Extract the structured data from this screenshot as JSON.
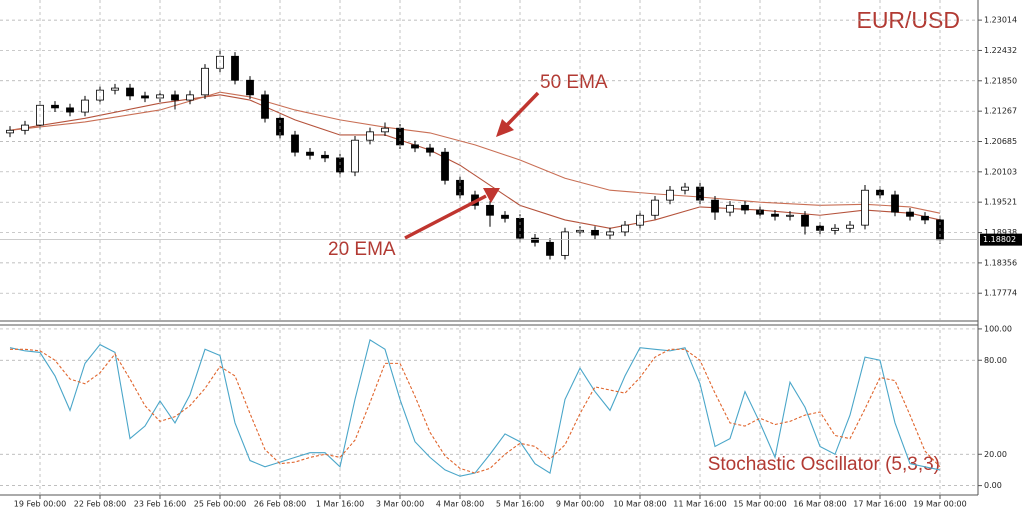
{
  "chart_data": [
    {
      "type": "candlestick",
      "title": "EUR/USD",
      "open": [
        1.2085,
        1.209,
        1.21,
        1.2138,
        1.2133,
        1.2125,
        1.2148,
        1.2167,
        1.2171,
        1.2156,
        1.2152,
        1.2158,
        1.2148,
        1.2158,
        1.2209,
        1.2232,
        1.2186,
        1.2158,
        1.2113,
        1.2081,
        1.2048,
        1.2042,
        1.2037,
        1.201,
        1.2071,
        1.2087,
        1.2094,
        1.2062,
        1.2056,
        1.2048,
        1.1994,
        1.1966,
        1.1946,
        1.1927,
        1.1921,
        1.1883,
        1.1875,
        1.185,
        1.1895,
        1.1898,
        1.1889,
        1.1895,
        1.1908,
        1.1927,
        1.1956,
        1.1975,
        1.1981,
        1.1956,
        1.1933,
        1.1946,
        1.1937,
        1.1929,
        1.1925,
        1.1927,
        1.1906,
        1.1898,
        1.1902,
        1.1908,
        1.1975,
        1.1966,
        1.1933,
        1.1925,
        1.1918
      ],
      "high": [
        1.2098,
        1.2108,
        1.2146,
        1.2146,
        1.2141,
        1.2156,
        1.2175,
        1.2179,
        1.2179,
        1.2164,
        1.2166,
        1.2166,
        1.2166,
        1.2217,
        1.2245,
        1.224,
        1.2194,
        1.2166,
        1.2121,
        1.2089,
        1.2056,
        1.205,
        1.2045,
        1.2079,
        1.2095,
        1.2105,
        1.2102,
        1.207,
        1.2064,
        1.2056,
        1.2002,
        1.1974,
        1.1954,
        1.1935,
        1.1929,
        1.1891,
        1.1883,
        1.1903,
        1.1906,
        1.1906,
        1.1903,
        1.1916,
        1.1935,
        1.1964,
        1.1983,
        1.1989,
        1.1989,
        1.1964,
        1.1954,
        1.1954,
        1.1945,
        1.1937,
        1.1935,
        1.1935,
        1.1914,
        1.191,
        1.1916,
        1.1985,
        1.1983,
        1.1974,
        1.1941,
        1.1933,
        1.1926
      ],
      "low": [
        1.2077,
        1.2082,
        1.2092,
        1.2125,
        1.2117,
        1.2117,
        1.214,
        1.2159,
        1.2148,
        1.2144,
        1.2144,
        1.213,
        1.214,
        1.215,
        1.2201,
        1.2178,
        1.215,
        1.2105,
        1.2073,
        1.204,
        1.2034,
        1.2029,
        1.2,
        1.2002,
        1.2063,
        1.2079,
        1.2054,
        1.2048,
        1.204,
        1.1986,
        1.1958,
        1.1938,
        1.1905,
        1.1913,
        1.1875,
        1.1867,
        1.1842,
        1.1842,
        1.1887,
        1.1881,
        1.1881,
        1.1887,
        1.19,
        1.1919,
        1.1948,
        1.1967,
        1.1948,
        1.1918,
        1.1925,
        1.1929,
        1.1921,
        1.1917,
        1.1917,
        1.189,
        1.189,
        1.189,
        1.1894,
        1.19,
        1.1958,
        1.1925,
        1.1917,
        1.191,
        1.1872
      ],
      "close": [
        1.209,
        1.21,
        1.2138,
        1.2133,
        1.2125,
        1.2148,
        1.2167,
        1.2171,
        1.2156,
        1.2152,
        1.2158,
        1.2148,
        1.2158,
        1.2209,
        1.2232,
        1.2186,
        1.2158,
        1.2113,
        1.2081,
        1.2048,
        1.2042,
        1.2037,
        1.201,
        1.2071,
        1.2087,
        1.2094,
        1.2062,
        1.2056,
        1.2048,
        1.1994,
        1.1966,
        1.1946,
        1.1927,
        1.1921,
        1.1883,
        1.1875,
        1.185,
        1.1895,
        1.1898,
        1.1889,
        1.1895,
        1.1908,
        1.1927,
        1.1956,
        1.1975,
        1.1981,
        1.1956,
        1.1933,
        1.1946,
        1.1937,
        1.1929,
        1.1925,
        1.1927,
        1.1906,
        1.1898,
        1.1902,
        1.1908,
        1.1975,
        1.1966,
        1.1933,
        1.1925,
        1.1918,
        1.188
      ],
      "series": [
        {
          "name": "20 EMA",
          "color": "#b5533c",
          "x": [
            0,
            5,
            10,
            14,
            16,
            19,
            22,
            25,
            28,
            30,
            34,
            37,
            40,
            43,
            46,
            50,
            54,
            57,
            60,
            62
          ],
          "values": [
            1.209,
            1.2113,
            1.2142,
            1.2158,
            1.2148,
            1.211,
            1.2081,
            1.2081,
            1.2052,
            1.2023,
            1.1946,
            1.1918,
            1.1902,
            1.1918,
            1.1943,
            1.1937,
            1.1927,
            1.1937,
            1.1931,
            1.1918
          ]
        },
        {
          "name": "50 EMA",
          "color": "#c96f55",
          "x": [
            0,
            5,
            10,
            14,
            16,
            19,
            22,
            25,
            28,
            31,
            34,
            37,
            40,
            43,
            46,
            50,
            54,
            57,
            60,
            62
          ],
          "values": [
            1.209,
            1.2106,
            1.2129,
            1.2163,
            1.2154,
            1.2129,
            1.211,
            1.2096,
            1.2085,
            1.2062,
            1.2033,
            1.1998,
            1.1975,
            1.1968,
            1.1962,
            1.1952,
            1.1946,
            1.1948,
            1.1943,
            1.1931
          ]
        }
      ],
      "last_price": 1.18802,
      "ylim": [
        1.1726,
        1.234
      ],
      "yticks": [
        1.23014,
        1.22432,
        {
          "value": 1.2185,
          "label": "1.21850"
        },
        1.21267,
        1.20685,
        1.20103,
        1.19521,
        1.18938,
        1.18356,
        1.17774
      ],
      "grid": true
    },
    {
      "type": "line",
      "title": "Stochastic Oscillator (5,3,3)",
      "categories": [
        null,
        null,
        "19 Feb 00:00",
        null,
        null,
        null,
        "22 Feb 08:00",
        null,
        null,
        null,
        "23 Feb 16:00",
        null,
        null,
        null,
        "25 Feb 00:00",
        null,
        null,
        null,
        "26 Feb 08:00",
        null,
        null,
        null,
        "1 Mar 16:00",
        null,
        null,
        null,
        "3 Mar 00:00",
        null,
        null,
        null,
        "4 Mar 08:00",
        null,
        null,
        null,
        "5 Mar 16:00",
        null,
        null,
        null,
        "9 Mar 00:00",
        null,
        null,
        null,
        "10 Mar 08:00",
        null,
        null,
        null,
        "11 Mar 16:00",
        null,
        null,
        null,
        "15 Mar 00:00",
        null,
        null,
        null,
        "16 Mar 08:00",
        null,
        null,
        null,
        "17 Mar 16:00",
        null,
        null,
        null,
        "19 Mar 00:00"
      ],
      "series": [
        {
          "color": "#4aa6c9",
          "line_style": "solid",
          "values": [
            88,
            86,
            85,
            70,
            48,
            78,
            90,
            85,
            30,
            38,
            54,
            40,
            58,
            87,
            83,
            40,
            16,
            12,
            15,
            18,
            21,
            21,
            12,
            55,
            93,
            87,
            55,
            28,
            18,
            10,
            6,
            8,
            20,
            33,
            28,
            14,
            8,
            55,
            75,
            60,
            48,
            70,
            88,
            87,
            86,
            88,
            65,
            25,
            30,
            60,
            40,
            18,
            66,
            50,
            25,
            20,
            45,
            82,
            80,
            40,
            14,
            12,
            10
          ]
        },
        {
          "color": "#e0652d",
          "line_style": "dashed",
          "values": [
            87,
            87,
            86,
            80,
            68,
            65,
            72,
            84,
            68,
            51,
            41,
            44,
            51,
            62,
            76,
            70,
            46,
            23,
            14,
            15,
            18,
            20,
            18,
            29,
            53,
            78,
            78,
            57,
            34,
            19,
            11,
            8,
            11,
            20,
            27,
            25,
            17,
            26,
            46,
            63,
            61,
            59,
            69,
            82,
            87,
            87,
            80,
            59,
            40,
            38,
            43,
            39,
            41,
            45,
            47,
            32,
            30,
            49,
            69,
            67,
            45,
            22,
            12
          ]
        }
      ],
      "ylim": [
        -6,
        102.5
      ],
      "yticks": [
        {
          "value": 100,
          "label": "100.00"
        },
        {
          "value": 80,
          "label": "80.00"
        },
        {
          "value": 20,
          "label": "20.00"
        },
        {
          "value": 0,
          "label": "0.00"
        }
      ],
      "grid": true
    }
  ]
}
